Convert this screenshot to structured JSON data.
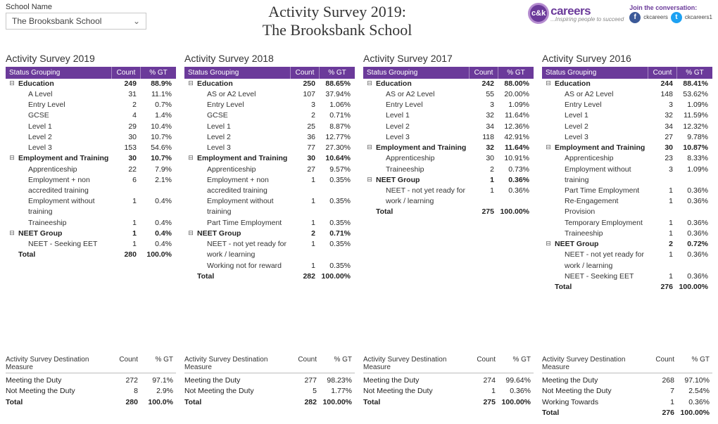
{
  "selector": {
    "label": "School Name",
    "value": "The Brooksbank School"
  },
  "title": {
    "line1": "Activity Survey 2019:",
    "line2": "The Brooksbank School"
  },
  "brand": {
    "badge": "c&k",
    "name": "careers",
    "tagline": "...Inspiring people to succeed",
    "join": "Join the conversation:",
    "fb": "ckcareers",
    "tw": "ckcareers1"
  },
  "columns": {
    "status": "Status Grouping",
    "count": "Count",
    "pct": "% GT"
  },
  "surveys": [
    {
      "title": "Activity Survey 2019",
      "rows": [
        {
          "level": 0,
          "exp": "⊟",
          "label": "Education",
          "count": "249",
          "pct": "88.9%"
        },
        {
          "level": 1,
          "label": "A Level",
          "count": "31",
          "pct": "11.1%"
        },
        {
          "level": 1,
          "label": "Entry Level",
          "count": "2",
          "pct": "0.7%"
        },
        {
          "level": 1,
          "label": "GCSE",
          "count": "4",
          "pct": "1.4%"
        },
        {
          "level": 1,
          "label": "Level 1",
          "count": "29",
          "pct": "10.4%"
        },
        {
          "level": 1,
          "label": "Level 2",
          "count": "30",
          "pct": "10.7%"
        },
        {
          "level": 1,
          "label": "Level 3",
          "count": "153",
          "pct": "54.6%"
        },
        {
          "level": 0,
          "exp": "⊟",
          "label": "Employment and Training",
          "count": "30",
          "pct": "10.7%"
        },
        {
          "level": 1,
          "label": "Apprenticeship",
          "count": "22",
          "pct": "7.9%"
        },
        {
          "level": 1,
          "label": "Employment + non accredited training",
          "count": "6",
          "pct": "2.1%"
        },
        {
          "level": 1,
          "label": "Employment without training",
          "count": "1",
          "pct": "0.4%"
        },
        {
          "level": 1,
          "label": "Traineeship",
          "count": "1",
          "pct": "0.4%"
        },
        {
          "level": 0,
          "exp": "⊟",
          "label": "NEET Group",
          "count": "1",
          "pct": "0.4%"
        },
        {
          "level": 1,
          "label": "NEET - Seeking EET",
          "count": "1",
          "pct": "0.4%"
        },
        {
          "level": 0,
          "total": true,
          "label": "Total",
          "count": "280",
          "pct": "100.0%"
        }
      ]
    },
    {
      "title": "Activity Survey 2018",
      "rows": [
        {
          "level": 0,
          "exp": "⊟",
          "label": "Education",
          "count": "250",
          "pct": "88.65%"
        },
        {
          "level": 1,
          "label": "AS or A2 Level",
          "count": "107",
          "pct": "37.94%"
        },
        {
          "level": 1,
          "label": "Entry Level",
          "count": "3",
          "pct": "1.06%"
        },
        {
          "level": 1,
          "label": "GCSE",
          "count": "2",
          "pct": "0.71%"
        },
        {
          "level": 1,
          "label": "Level 1",
          "count": "25",
          "pct": "8.87%"
        },
        {
          "level": 1,
          "label": "Level 2",
          "count": "36",
          "pct": "12.77%"
        },
        {
          "level": 1,
          "label": "Level 3",
          "count": "77",
          "pct": "27.30%"
        },
        {
          "level": 0,
          "exp": "⊟",
          "label": "Employment and Training",
          "count": "30",
          "pct": "10.64%"
        },
        {
          "level": 1,
          "label": "Apprenticeship",
          "count": "27",
          "pct": "9.57%"
        },
        {
          "level": 1,
          "label": "Employment + non accredited training",
          "count": "1",
          "pct": "0.35%"
        },
        {
          "level": 1,
          "label": "Employment without training",
          "count": "1",
          "pct": "0.35%"
        },
        {
          "level": 1,
          "label": "Part Time Employment",
          "count": "1",
          "pct": "0.35%"
        },
        {
          "level": 0,
          "exp": "⊟",
          "label": "NEET Group",
          "count": "2",
          "pct": "0.71%"
        },
        {
          "level": 1,
          "label": "NEET - not yet ready for work / learning",
          "count": "1",
          "pct": "0.35%"
        },
        {
          "level": 1,
          "label": "Working not for reward",
          "count": "1",
          "pct": "0.35%"
        },
        {
          "level": 0,
          "total": true,
          "label": "Total",
          "count": "282",
          "pct": "100.00%"
        }
      ]
    },
    {
      "title": "Activity Survey 2017",
      "rows": [
        {
          "level": 0,
          "exp": "⊟",
          "label": "Education",
          "count": "242",
          "pct": "88.00%"
        },
        {
          "level": 1,
          "label": "AS or A2 Level",
          "count": "55",
          "pct": "20.00%"
        },
        {
          "level": 1,
          "label": "Entry Level",
          "count": "3",
          "pct": "1.09%"
        },
        {
          "level": 1,
          "label": "Level 1",
          "count": "32",
          "pct": "11.64%"
        },
        {
          "level": 1,
          "label": "Level 2",
          "count": "34",
          "pct": "12.36%"
        },
        {
          "level": 1,
          "label": "Level 3",
          "count": "118",
          "pct": "42.91%"
        },
        {
          "level": 0,
          "exp": "⊟",
          "label": "Employment and Training",
          "count": "32",
          "pct": "11.64%"
        },
        {
          "level": 1,
          "label": "Apprenticeship",
          "count": "30",
          "pct": "10.91%"
        },
        {
          "level": 1,
          "label": "Traineeship",
          "count": "2",
          "pct": "0.73%"
        },
        {
          "level": 0,
          "exp": "⊟",
          "label": "NEET Group",
          "count": "1",
          "pct": "0.36%"
        },
        {
          "level": 1,
          "label": "NEET - not yet ready for work / learning",
          "count": "1",
          "pct": "0.36%"
        },
        {
          "level": 0,
          "total": true,
          "label": "Total",
          "count": "275",
          "pct": "100.00%"
        }
      ]
    },
    {
      "title": "Activity Survey 2016",
      "rows": [
        {
          "level": 0,
          "exp": "⊟",
          "label": "Education",
          "count": "244",
          "pct": "88.41%"
        },
        {
          "level": 1,
          "label": "AS or A2 Level",
          "count": "148",
          "pct": "53.62%"
        },
        {
          "level": 1,
          "label": "Entry Level",
          "count": "3",
          "pct": "1.09%"
        },
        {
          "level": 1,
          "label": "Level 1",
          "count": "32",
          "pct": "11.59%"
        },
        {
          "level": 1,
          "label": "Level 2",
          "count": "34",
          "pct": "12.32%"
        },
        {
          "level": 1,
          "label": "Level 3",
          "count": "27",
          "pct": "9.78%"
        },
        {
          "level": 0,
          "exp": "⊟",
          "label": "Employment and Training",
          "count": "30",
          "pct": "10.87%"
        },
        {
          "level": 1,
          "label": "Apprenticeship",
          "count": "23",
          "pct": "8.33%"
        },
        {
          "level": 1,
          "label": "Employment without training",
          "count": "3",
          "pct": "1.09%"
        },
        {
          "level": 1,
          "label": "Part Time Employment",
          "count": "1",
          "pct": "0.36%"
        },
        {
          "level": 1,
          "label": "Re-Engagement Provision",
          "count": "1",
          "pct": "0.36%"
        },
        {
          "level": 1,
          "label": "Temporary Employment",
          "count": "1",
          "pct": "0.36%"
        },
        {
          "level": 1,
          "label": "Traineeship",
          "count": "1",
          "pct": "0.36%"
        },
        {
          "level": 0,
          "exp": "⊟",
          "label": "NEET Group",
          "count": "2",
          "pct": "0.72%"
        },
        {
          "level": 1,
          "label": "NEET - not yet ready for work / learning",
          "count": "1",
          "pct": "0.36%"
        },
        {
          "level": 1,
          "label": "NEET - Seeking EET",
          "count": "1",
          "pct": "0.36%"
        },
        {
          "level": 0,
          "total": true,
          "label": "Total",
          "count": "276",
          "pct": "100.00%"
        }
      ]
    }
  ],
  "destHeader": {
    "label": "Activity Survey Destination Measure",
    "count": "Count",
    "pct": "% GT"
  },
  "destinations": [
    [
      {
        "label": "Meeting the Duty",
        "count": "272",
        "pct": "97.1%"
      },
      {
        "label": "Not Meeting the Duty",
        "count": "8",
        "pct": "2.9%"
      },
      {
        "label": "Total",
        "count": "280",
        "pct": "100.0%",
        "total": true
      }
    ],
    [
      {
        "label": "Meeting the Duty",
        "count": "277",
        "pct": "98.23%"
      },
      {
        "label": "Not Meeting the Duty",
        "count": "5",
        "pct": "1.77%"
      },
      {
        "label": "Total",
        "count": "282",
        "pct": "100.00%",
        "total": true
      }
    ],
    [
      {
        "label": "Meeting the Duty",
        "count": "274",
        "pct": "99.64%"
      },
      {
        "label": "Not Meeting the Duty",
        "count": "1",
        "pct": "0.36%"
      },
      {
        "label": "Total",
        "count": "275",
        "pct": "100.00%",
        "total": true
      }
    ],
    [
      {
        "label": "Meeting the Duty",
        "count": "268",
        "pct": "97.10%"
      },
      {
        "label": "Not Meeting the Duty",
        "count": "7",
        "pct": "2.54%"
      },
      {
        "label": "Working Towards",
        "count": "1",
        "pct": "0.36%"
      },
      {
        "label": "Total",
        "count": "276",
        "pct": "100.00%",
        "total": true
      }
    ]
  ]
}
